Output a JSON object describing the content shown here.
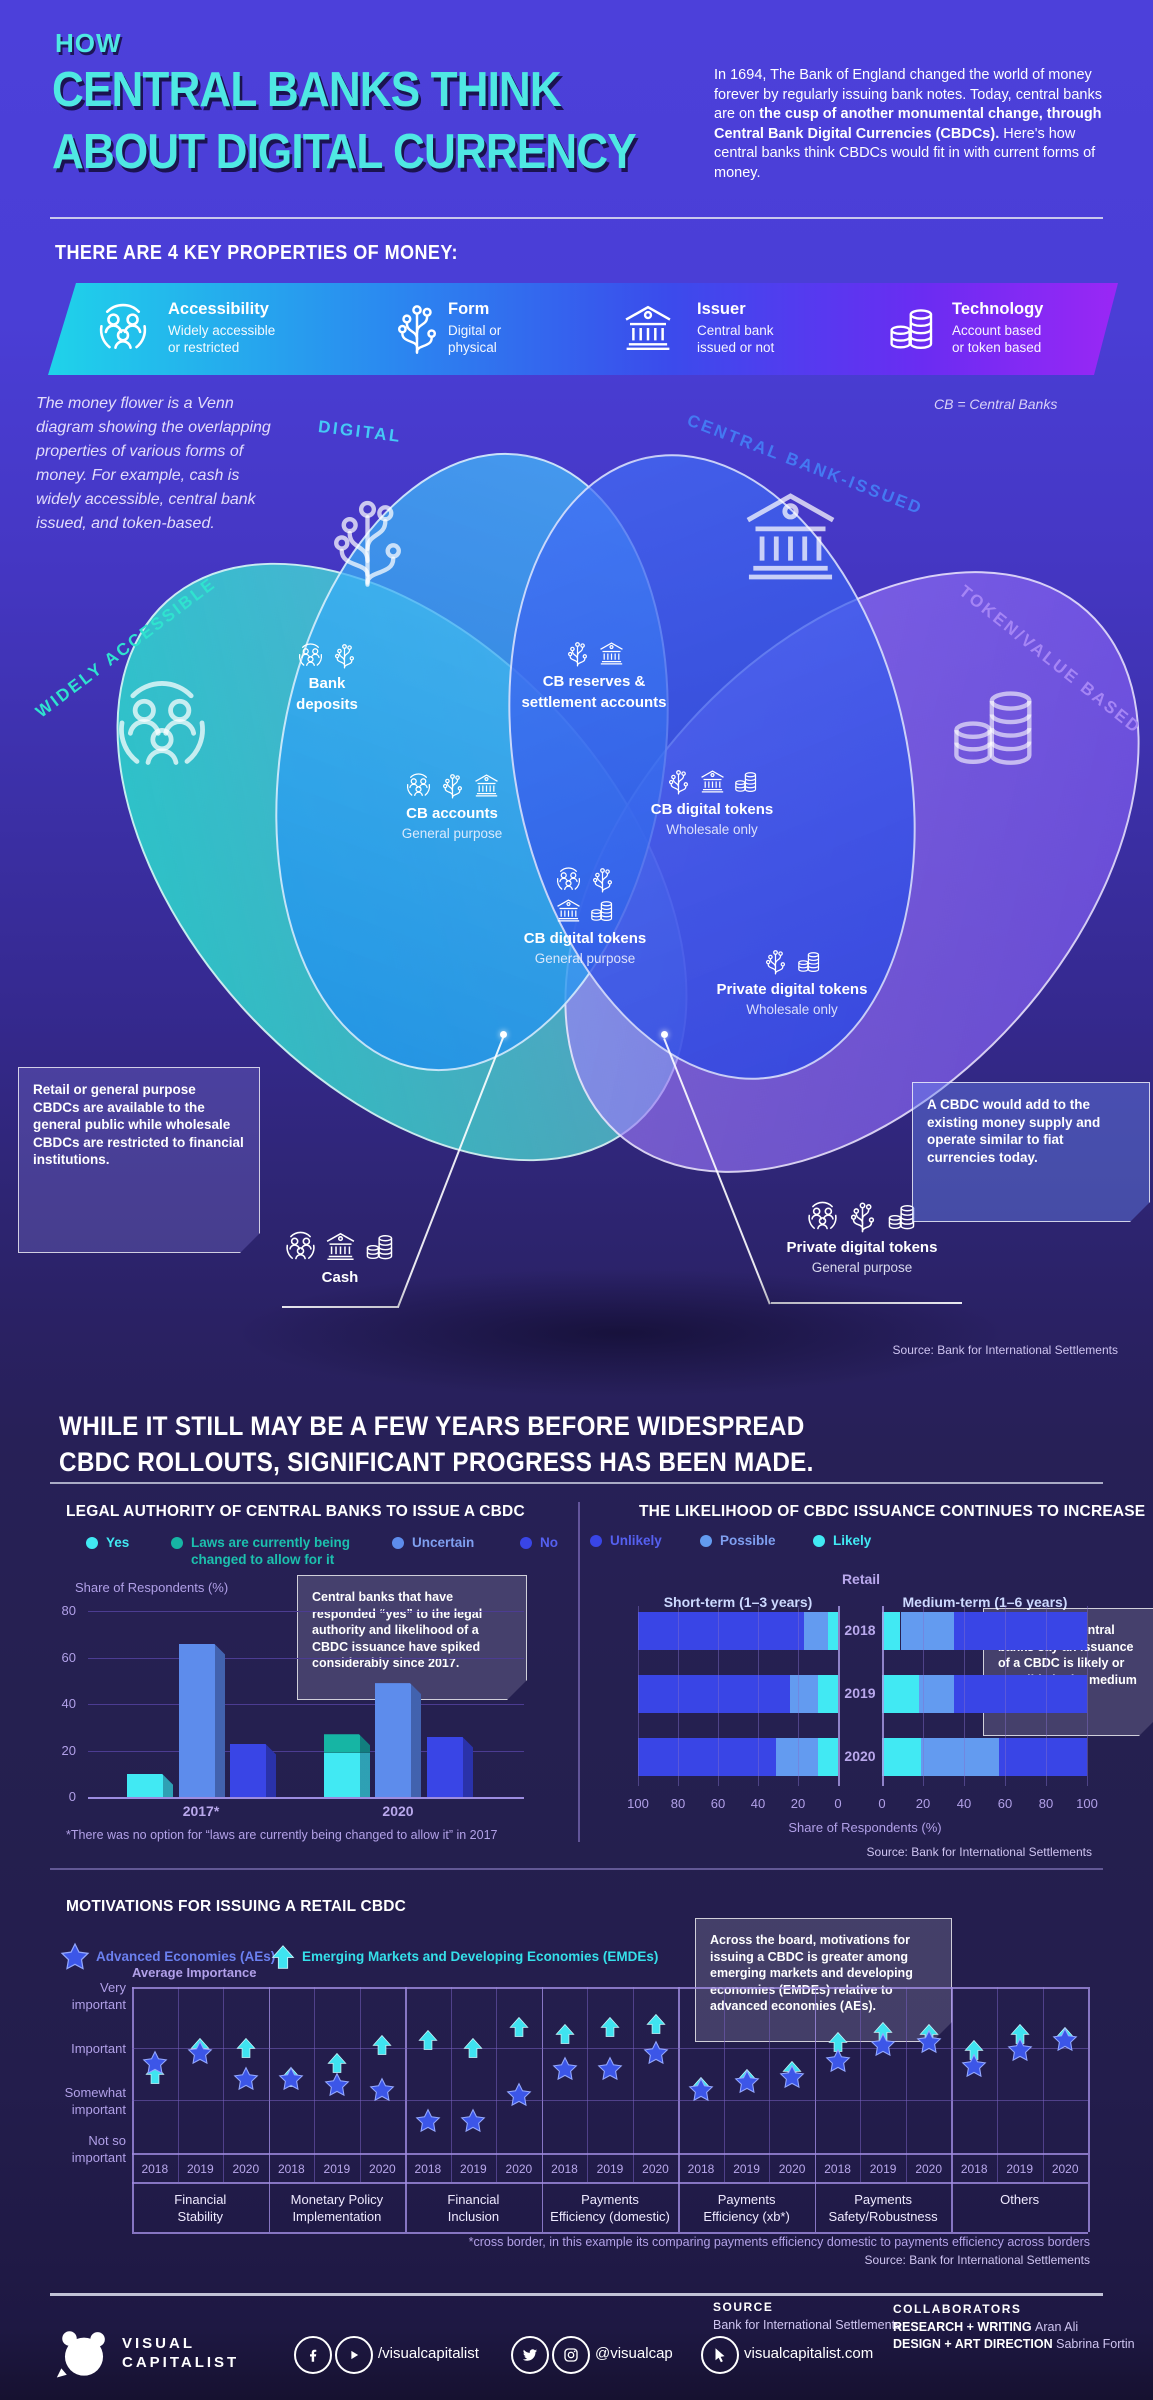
{
  "header": {
    "kicker": "HOW",
    "title1": "CENTRAL BANKS THINK",
    "title2": "ABOUT DIGITAL CURRENCY",
    "intro_pre": "In 1694, The Bank of England changed the world of money forever by regularly issuing bank notes. Today, central banks are on ",
    "intro_bold": "the cusp of another monumental change, through Central Bank Digital Currencies (CBDCs).",
    "intro_post": " Here's how central banks think CBDCs would fit in with current forms of money."
  },
  "properties": {
    "heading": "THERE ARE 4 KEY PROPERTIES OF MONEY:",
    "items": [
      {
        "icon": "people-icon",
        "title": "Accessibility",
        "desc": "Widely accessible\nor restricted"
      },
      {
        "icon": "circuit-icon",
        "title": "Form",
        "desc": "Digital or\nphysical"
      },
      {
        "icon": "bank-icon",
        "title": "Issuer",
        "desc": "Central bank\nissued or not"
      },
      {
        "icon": "coins-icon",
        "title": "Technology",
        "desc": "Account based\nor token based"
      }
    ]
  },
  "venn": {
    "note": "The money flower is a Venn diagram showing the overlapping properties of various forms of money. For example, cash is widely accessible, central bank issued, and token-based.",
    "cb_note": "CB = Central Banks",
    "sets": [
      {
        "label": "WIDELY ACCESSIBLE",
        "color": "#2fe3cf"
      },
      {
        "label": "DIGITAL",
        "color": "#45c9f5"
      },
      {
        "label": "CENTRAL BANK-ISSUED",
        "color": "#4479f2"
      },
      {
        "label": "TOKEN/VALUE BASED",
        "color": "#a585f5"
      }
    ],
    "regions": [
      {
        "label": "Bank\ndeposits",
        "sub": ""
      },
      {
        "label": "CB reserves &\nsettlement accounts",
        "sub": ""
      },
      {
        "label": "CB accounts",
        "sub": "General purpose"
      },
      {
        "label": "CB digital tokens",
        "sub": "Wholesale only"
      },
      {
        "label": "CB digital tokens",
        "sub": "General purpose"
      },
      {
        "label": "Private digital tokens",
        "sub": "Wholesale only"
      },
      {
        "label": "Cash",
        "sub": ""
      },
      {
        "label": "Private digital tokens",
        "sub": "General purpose"
      }
    ],
    "callout_left": "Retail or general purpose CBDCs are available to the general public while wholesale CBDCs are restricted to financial institutions.",
    "callout_right": "A CBDC would add to the existing money supply and operate similar to fiat currencies today.",
    "source": "Source: Bank for International Settlements"
  },
  "progress": {
    "heading": "WHILE IT STILL MAY BE A FEW YEARS BEFORE WIDESPREAD\nCBDC ROLLOUTS, SIGNIFICANT PROGRESS HAS BEEN MADE."
  },
  "chart_data": [
    {
      "type": "bar",
      "title": "LEGAL AUTHORITY OF CENTRAL BANKS TO ISSUE A CBDC",
      "ylabel": "Share of Respondents (%)",
      "ylim": [
        0,
        80
      ],
      "yticks": [
        0,
        20,
        40,
        60,
        80
      ],
      "categories": [
        "2017*",
        "2020"
      ],
      "series": [
        {
          "name": "Yes",
          "color": "#41e9f3",
          "values": [
            10,
            19
          ]
        },
        {
          "name": "Laws are currently being\nchanged to allow for it",
          "color": "#16b5a4",
          "values": [
            0,
            8
          ]
        },
        {
          "name": "Uncertain",
          "color": "#5d8cec",
          "values": [
            66,
            49
          ]
        },
        {
          "name": "No",
          "color": "#3945e6",
          "values": [
            23,
            26
          ]
        }
      ],
      "callout": "Central banks that have responded “yes” to the legal authority and likelihood of a CBDC issuance have spiked considerably since 2017.",
      "footnote": "*There was no option for “laws are currently being changed to allow it” in 2017"
    },
    {
      "type": "stacked-bar-mirrored",
      "title": "THE LIKELIHOOD OF CBDC ISSUANCE CONTINUES TO INCREASE",
      "center_label": "Retail",
      "xlabel": "Share of Respondents (%)",
      "xticks": [
        0,
        20,
        40,
        60,
        80,
        100
      ],
      "years": [
        "2018",
        "2019",
        "2020"
      ],
      "legend": [
        {
          "name": "Unlikely",
          "color": "#3945e6"
        },
        {
          "name": "Possible",
          "color": "#639bf0"
        },
        {
          "name": "Likely",
          "color": "#41e9f3"
        }
      ],
      "panels": [
        {
          "label": "Short-term (1–3 years)",
          "series": {
            "Likely": [
              5,
              10,
              10
            ],
            "Possible": [
              12,
              14,
              21
            ],
            "Unlikely": [
              83,
              76,
              69
            ]
          }
        },
        {
          "label": "Medium-term (1–6 years)",
          "series": {
            "Likely": [
              9,
              18,
              19
            ],
            "Possible": [
              26,
              17,
              38
            ],
            "Unlikely": [
              65,
              65,
              43
            ]
          }
        }
      ],
      "callout": "Over 50% of central banks say an issuance of a CBDC is likely or possible in the medium term.",
      "source": "Source: Bank for International Settlements"
    },
    {
      "type": "scatter",
      "title": "MOTIVATIONS FOR ISSUING A RETAIL CBDC",
      "ylabel": "Average Importance",
      "ylevels": [
        "Very\nimportant",
        "Important",
        "Somewhat\nimportant",
        "Not so\nimportant"
      ],
      "legend": [
        {
          "name": "Advanced Economies (AEs)",
          "marker": "star",
          "color": "#3c56e8"
        },
        {
          "name": "Emerging Markets and Developing Economies (EMDEs)",
          "marker": "arrow",
          "color": "#3fe3f0"
        }
      ],
      "years": [
        "2018",
        "2019",
        "2020"
      ],
      "groups": [
        {
          "label": "Financial\nStability",
          "aes": [
            2.7,
            2.9,
            2.4
          ],
          "emdes": [
            2.5,
            3.0,
            3.0
          ]
        },
        {
          "label": "Monetary Policy\nImplementation",
          "aes": [
            2.4,
            2.3,
            2.2
          ],
          "emdes": [
            2.45,
            2.7,
            3.05
          ]
        },
        {
          "label": "Financial\nInclusion",
          "aes": [
            1.6,
            1.6,
            2.1
          ],
          "emdes": [
            3.15,
            3.0,
            3.4
          ]
        },
        {
          "label": "Payments\nEfficiency (domestic)",
          "aes": [
            2.6,
            2.6,
            2.9
          ],
          "emdes": [
            3.25,
            3.4,
            3.45
          ]
        },
        {
          "label": "Payments\nEfficiency (xb*)",
          "aes": [
            2.2,
            2.35,
            2.45
          ],
          "emdes": [
            2.25,
            2.4,
            2.55
          ]
        },
        {
          "label": "Payments\nSafety/Robustness",
          "aes": [
            2.75,
            3.05,
            3.1
          ],
          "emdes": [
            3.1,
            3.3,
            3.25
          ]
        },
        {
          "label": "Others",
          "aes": [
            2.65,
            2.95,
            3.15
          ],
          "emdes": [
            2.95,
            3.25,
            3.2
          ]
        }
      ],
      "callout": "Across the board, motivations for issuing a CBDC is greater among emerging markets and developing economies (EMDEs) relative to advanced economies (AEs).",
      "footnote": "*cross border, in this example its comparing payments efficiency domestic to payments efficiency across borders",
      "source": "Source: Bank for International Settlements"
    }
  ],
  "footer": {
    "logo1": "VISUAL",
    "logo2": "CAPITALIST",
    "handle_fbyt": "/visualcapitalist",
    "handle_ig": "@visualcap",
    "website": "visualcapitalist.com",
    "source_label": "SOURCE",
    "source_value": "Bank for International Settlements",
    "collab_label": "COLLABORATORS",
    "research_label": "RESEARCH + WRITING",
    "research_name": "Aran Ali",
    "design_label": "DESIGN + ART DIRECTION",
    "design_name": "Sabrina Fortin"
  }
}
